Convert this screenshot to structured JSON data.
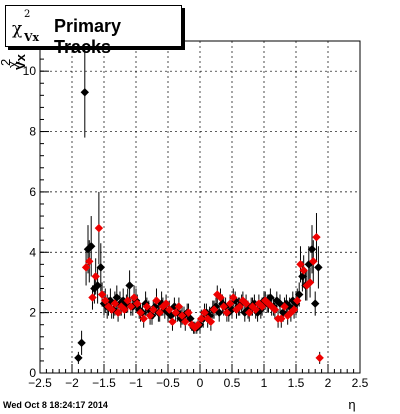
{
  "title": {
    "symbol": "χ",
    "sup": "2",
    "sub": "Vx",
    "text": "Primary Tracks"
  },
  "datestamp": "Wed Oct  8 18:24:17 2014",
  "chart_data": {
    "type": "scatter",
    "xlabel": "η",
    "ylabel": "χ²_Vx",
    "xlim": [
      -2.5,
      2.5
    ],
    "ylim": [
      0,
      11
    ],
    "xticks": [
      "−2.5",
      "−2",
      "−1.5",
      "−1",
      "−0.5",
      "0",
      "0.5",
      "1",
      "1.5",
      "2",
      "2.5"
    ],
    "yticks": [
      "0",
      "2",
      "4",
      "6",
      "8",
      "10"
    ],
    "grid": true,
    "legend": "none",
    "series": [
      {
        "color": "#000000",
        "x": [
          -1.9,
          -1.85,
          -1.8,
          -1.75,
          -1.7,
          -1.65,
          -1.6,
          -1.55,
          -1.5,
          -1.45,
          -1.4,
          -1.35,
          -1.3,
          -1.25,
          -1.2,
          -1.15,
          -1.1,
          -1.05,
          -1.0,
          -0.95,
          -0.9,
          -0.85,
          -0.8,
          -0.75,
          -0.7,
          -0.65,
          -0.6,
          -0.55,
          -0.5,
          -0.45,
          -0.4,
          -0.35,
          -0.3,
          -0.25,
          -0.2,
          -0.15,
          -0.1,
          -0.05,
          0.0,
          0.05,
          0.1,
          0.15,
          0.2,
          0.25,
          0.3,
          0.35,
          0.4,
          0.45,
          0.5,
          0.55,
          0.6,
          0.65,
          0.7,
          0.75,
          0.8,
          0.85,
          0.9,
          0.95,
          1.0,
          1.05,
          1.1,
          1.15,
          1.2,
          1.25,
          1.3,
          1.35,
          1.4,
          1.45,
          1.5,
          1.55,
          1.6,
          1.65,
          1.7,
          1.75,
          1.8,
          1.85
        ],
        "y": [
          0.5,
          1.0,
          9.3,
          4.1,
          4.2,
          2.8,
          2.9,
          3.5,
          2.3,
          2.2,
          2.4,
          2.1,
          2.5,
          2.3,
          2.4,
          2.3,
          2.9,
          2.2,
          2.4,
          2.1,
          2.0,
          2.3,
          2.1,
          1.9,
          2.2,
          2.0,
          2.3,
          2.1,
          2.0,
          1.9,
          2.2,
          2.0,
          1.8,
          1.9,
          2.0,
          1.8,
          1.5,
          1.5,
          1.6,
          1.8,
          2.0,
          1.9,
          2.1,
          2.2,
          2.0,
          2.3,
          2.2,
          2.0,
          2.1,
          2.4,
          2.2,
          2.3,
          2.0,
          2.1,
          2.2,
          2.3,
          2.0,
          2.1,
          2.4,
          2.3,
          2.5,
          2.2,
          2.4,
          2.3,
          2.0,
          2.3,
          2.2,
          2.4,
          2.3,
          2.6,
          3.2,
          2.9,
          3.6,
          4.1,
          2.3,
          3.5
        ],
        "err": [
          0.2,
          0.4,
          1.5,
          0.8,
          1.0,
          0.5,
          0.6,
          0.8,
          0.4,
          0.4,
          0.4,
          0.3,
          0.4,
          0.4,
          0.4,
          0.3,
          0.5,
          0.3,
          0.4,
          0.3,
          0.3,
          0.4,
          0.3,
          0.3,
          0.3,
          0.3,
          0.4,
          0.3,
          0.3,
          0.3,
          0.3,
          0.3,
          0.3,
          0.3,
          0.3,
          0.3,
          0.2,
          0.2,
          0.3,
          0.3,
          0.3,
          0.3,
          0.3,
          0.3,
          0.3,
          0.3,
          0.3,
          0.3,
          0.3,
          0.3,
          0.3,
          0.3,
          0.3,
          0.3,
          0.3,
          0.3,
          0.3,
          0.3,
          0.3,
          0.3,
          0.3,
          0.3,
          0.3,
          0.3,
          0.3,
          0.3,
          0.3,
          0.3,
          0.4,
          0.4,
          0.5,
          0.5,
          0.6,
          0.8,
          0.4,
          0.7
        ]
      },
      {
        "color": "#ee0000",
        "x": [
          -1.78,
          -1.73,
          -1.68,
          -1.63,
          -1.58,
          -1.53,
          -1.48,
          -1.43,
          -1.38,
          -1.33,
          -1.28,
          -1.23,
          -1.18,
          -1.13,
          -1.08,
          -1.03,
          -0.98,
          -0.93,
          -0.88,
          -0.83,
          -0.78,
          -0.73,
          -0.68,
          -0.63,
          -0.58,
          -0.53,
          -0.48,
          -0.43,
          -0.38,
          -0.33,
          -0.28,
          -0.23,
          -0.18,
          -0.13,
          -0.08,
          -0.03,
          0.02,
          0.07,
          0.12,
          0.17,
          0.22,
          0.27,
          0.32,
          0.37,
          0.42,
          0.47,
          0.52,
          0.57,
          0.62,
          0.67,
          0.72,
          0.77,
          0.82,
          0.87,
          0.92,
          0.97,
          1.02,
          1.07,
          1.12,
          1.17,
          1.22,
          1.27,
          1.32,
          1.37,
          1.42,
          1.47,
          1.52,
          1.57,
          1.62,
          1.67,
          1.72,
          1.77,
          1.82,
          1.87
        ],
        "y": [
          3.5,
          3.7,
          2.5,
          3.2,
          4.8,
          2.6,
          2.4,
          2.2,
          2.1,
          2.3,
          2.0,
          2.2,
          2.1,
          2.4,
          2.2,
          2.5,
          2.3,
          2.0,
          1.8,
          2.2,
          1.9,
          2.1,
          2.4,
          2.0,
          2.2,
          2.3,
          2.1,
          1.7,
          2.0,
          2.2,
          1.9,
          1.7,
          2.0,
          1.6,
          1.5,
          1.6,
          1.8,
          2.0,
          1.8,
          1.7,
          2.1,
          2.6,
          2.5,
          2.2,
          2.0,
          2.3,
          2.5,
          2.1,
          2.2,
          2.4,
          2.3,
          2.0,
          2.2,
          2.1,
          2.3,
          2.2,
          2.4,
          2.3,
          2.2,
          2.1,
          1.8,
          1.8,
          2.2,
          1.9,
          2.0,
          2.1,
          2.4,
          3.6,
          3.4,
          2.9,
          3.0,
          3.7,
          4.5,
          0.5
        ],
        "err": [
          0.6,
          0.7,
          0.4,
          0.6,
          1.2,
          0.4,
          0.4,
          0.3,
          0.3,
          0.4,
          0.3,
          0.3,
          0.3,
          0.4,
          0.3,
          0.4,
          0.3,
          0.3,
          0.3,
          0.3,
          0.3,
          0.3,
          0.4,
          0.3,
          0.3,
          0.3,
          0.3,
          0.3,
          0.3,
          0.3,
          0.3,
          0.3,
          0.3,
          0.2,
          0.2,
          0.2,
          0.3,
          0.3,
          0.3,
          0.3,
          0.3,
          0.3,
          0.3,
          0.3,
          0.3,
          0.3,
          0.3,
          0.3,
          0.3,
          0.3,
          0.3,
          0.3,
          0.3,
          0.3,
          0.3,
          0.3,
          0.3,
          0.3,
          0.3,
          0.3,
          0.3,
          0.3,
          0.3,
          0.3,
          0.3,
          0.3,
          0.4,
          0.6,
          0.5,
          0.5,
          0.5,
          0.7,
          0.8,
          0.2
        ]
      }
    ]
  }
}
